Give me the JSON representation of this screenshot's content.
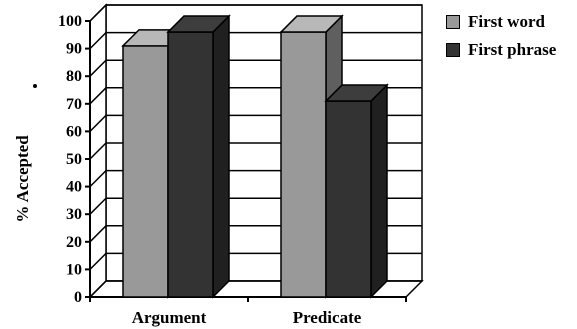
{
  "chart_data": {
    "type": "bar",
    "style": "3d-clustered-column",
    "categories": [
      "Argument",
      "Predicate"
    ],
    "series": [
      {
        "name": "First word",
        "values": [
          91,
          96
        ],
        "color": "#999999"
      },
      {
        "name": "First phrase",
        "values": [
          96,
          71
        ],
        "color": "#333333"
      }
    ],
    "ylabel": "% Accepted",
    "xlabel": "",
    "ylim": [
      0,
      100
    ],
    "yticks": [
      0,
      10,
      20,
      30,
      40,
      50,
      60,
      70,
      80,
      90,
      100
    ],
    "grid": true,
    "legend": "top-right",
    "legend_symbol_color": "#000000"
  }
}
